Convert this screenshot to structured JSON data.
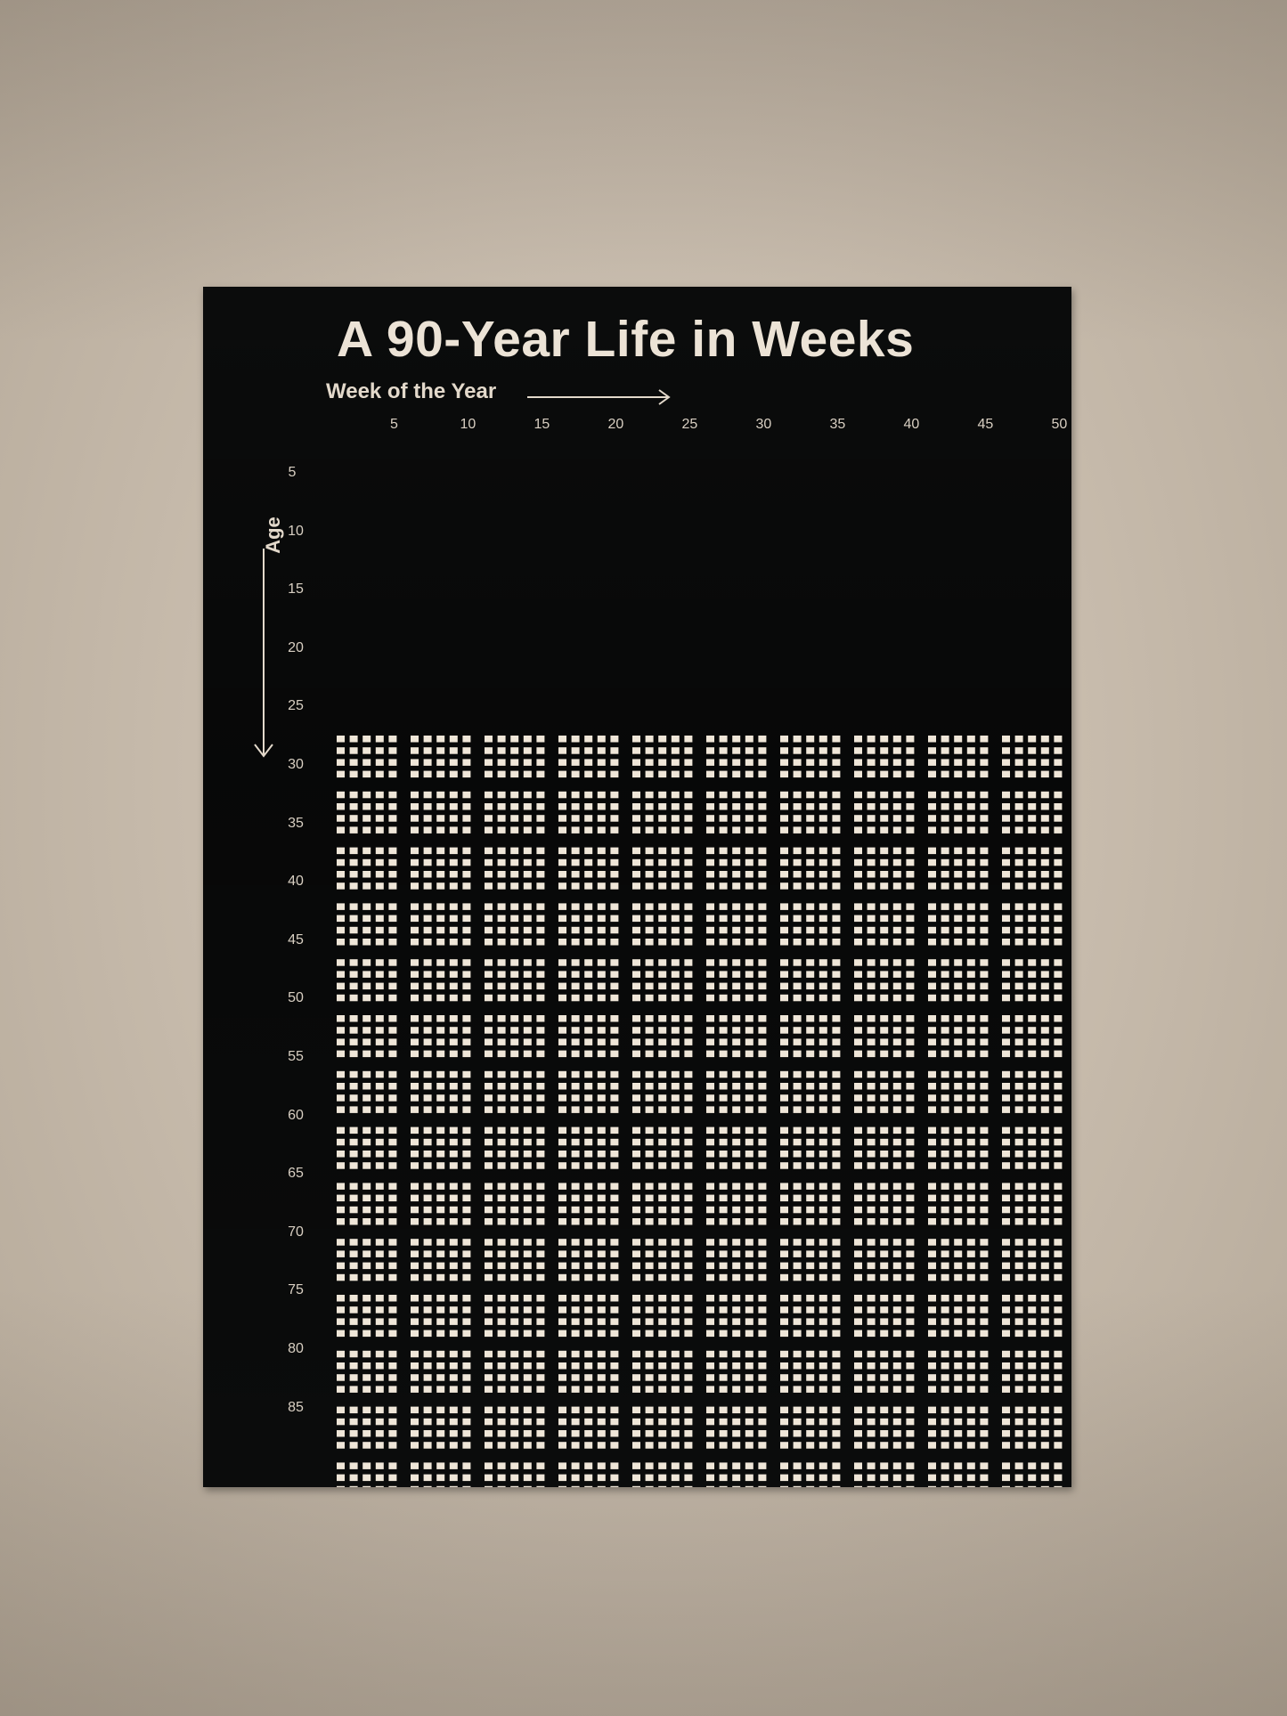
{
  "poster": {
    "title": "A 90-Year Life in Weeks",
    "x_axis_label": "Week of the Year",
    "y_axis_label": "Age",
    "x_ticks": [
      "5",
      "10",
      "15",
      "20",
      "25",
      "30",
      "35",
      "40",
      "45",
      "50"
    ],
    "y_ticks": [
      "5",
      "10",
      "15",
      "20",
      "25",
      "30",
      "35",
      "40",
      "45",
      "50",
      "55",
      "60",
      "65",
      "70",
      "75",
      "80",
      "85"
    ]
  },
  "grid": {
    "weeks_per_year": 52,
    "total_years": 90,
    "visible_from_age": 26,
    "week_color": "#efe6d8",
    "background_color": "#0b0c0c"
  },
  "colors": {
    "wall": "#d2c7b8",
    "poster": "#0b0c0c",
    "ink": "#ece3d6"
  }
}
